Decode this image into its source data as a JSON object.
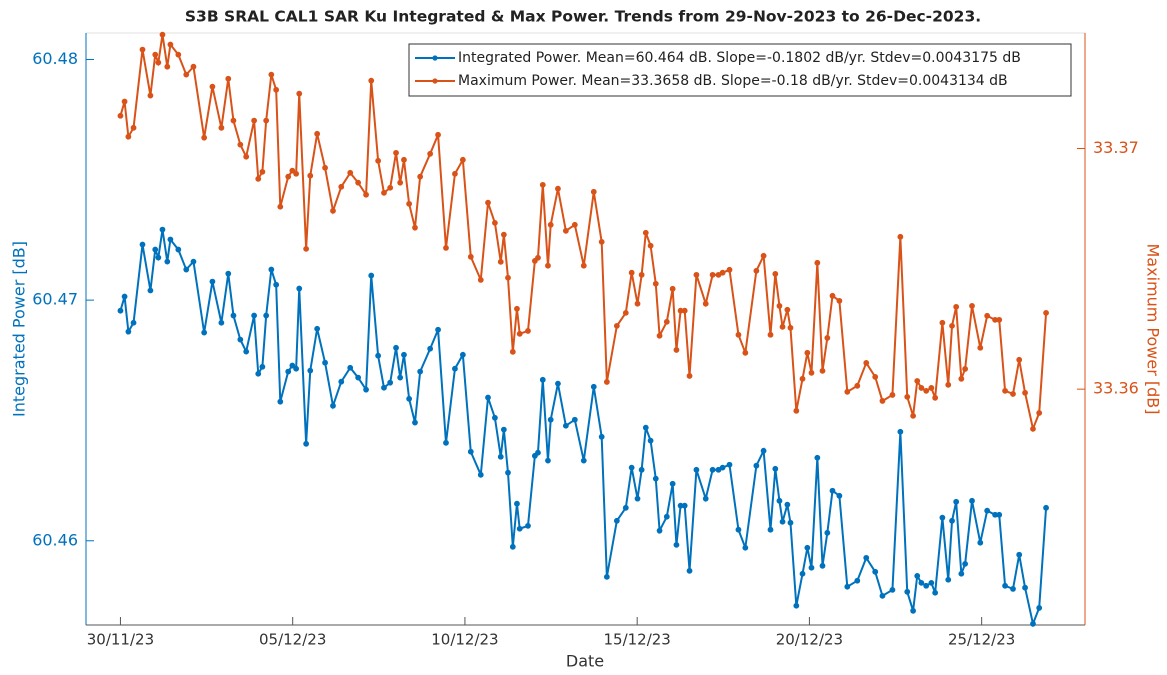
{
  "chart_data": {
    "type": "line",
    "title": "S3B SRAL CAL1 SAR Ku Integrated & Max Power. Trends from 29-Nov-2023 to 26-Dec-2023.",
    "x_label": "Date",
    "y_label": "Integrated Power [dB]",
    "y2_label": "Maximum Power [dB]",
    "xlim": [
      -1,
      28
    ],
    "xticks": [
      {
        "value": 0,
        "label": "30/11/23"
      },
      {
        "value": 5,
        "label": "05/12/23"
      },
      {
        "value": 10,
        "label": "10/12/23"
      },
      {
        "value": 15,
        "label": "15/12/23"
      },
      {
        "value": 20,
        "label": "20/12/23"
      },
      {
        "value": 25,
        "label": "25/12/23"
      }
    ],
    "ylim": [
      60.4565,
      60.4811
    ],
    "yticks": [
      60.46,
      60.47,
      60.48
    ],
    "y2lim": [
      33.3502,
      33.3748
    ],
    "y2ticks": [
      33.36,
      33.37
    ],
    "grid": false,
    "legend": "upper right",
    "x": [
      0,
      0.12,
      0.23,
      0.38,
      0.64,
      0.87,
      1.01,
      1.1,
      1.22,
      1.36,
      1.45,
      1.68,
      1.91,
      2.12,
      2.43,
      2.67,
      2.93,
      3.13,
      3.28,
      3.48,
      3.65,
      3.88,
      4.0,
      4.12,
      4.23,
      4.38,
      4.52,
      4.64,
      4.87,
      4.99,
      5.1,
      5.19,
      5.39,
      5.51,
      5.71,
      5.94,
      6.17,
      6.41,
      6.67,
      6.9,
      7.13,
      7.28,
      7.48,
      7.65,
      7.83,
      8.0,
      8.12,
      8.23,
      8.38,
      8.55,
      8.7,
      8.99,
      9.22,
      9.45,
      9.71,
      9.94,
      10.17,
      10.46,
      10.67,
      10.87,
      11.04,
      11.13,
      11.25,
      11.39,
      11.51,
      11.59,
      11.83,
      12.03,
      12.12,
      12.26,
      12.41,
      12.49,
      12.7,
      12.93,
      13.19,
      13.45,
      13.74,
      13.97,
      14.12,
      14.41,
      14.67,
      14.84,
      15.01,
      15.13,
      15.25,
      15.39,
      15.54,
      15.65,
      15.86,
      16.03,
      16.14,
      16.26,
      16.38,
      16.52,
      16.72,
      16.99,
      17.19,
      17.36,
      17.48,
      17.68,
      17.94,
      18.14,
      18.46,
      18.67,
      18.87,
      19.01,
      19.13,
      19.22,
      19.36,
      19.45,
      19.62,
      19.8,
      19.94,
      20.06,
      20.23,
      20.38,
      20.52,
      20.67,
      20.87,
      21.1,
      21.39,
      21.65,
      21.91,
      22.12,
      22.41,
      22.64,
      22.84,
      23.01,
      23.13,
      23.25,
      23.39,
      23.54,
      23.65,
      23.86,
      24.03,
      24.14,
      24.26,
      24.41,
      24.52,
      24.72,
      24.96,
      25.16,
      25.39,
      25.51,
      25.68,
      25.91,
      26.09,
      26.26,
      26.49,
      26.67,
      26.87
    ],
    "series": [
      {
        "name": "Integrated Power. Mean=60.464 dB. Slope=-0.1802 dB/yr. Stdev=0.0043175 dB",
        "color": "#0072bd",
        "axis": "y",
        "values": [
          60.46956,
          60.47015,
          60.46869,
          60.46906,
          60.47231,
          60.4704,
          60.4721,
          60.47177,
          60.47293,
          60.4716,
          60.47252,
          60.4721,
          60.47127,
          60.4716,
          60.46865,
          60.47077,
          60.46906,
          60.4711,
          60.46936,
          60.46836,
          60.46786,
          60.46936,
          60.46694,
          60.46723,
          60.46936,
          60.47127,
          60.47064,
          60.46578,
          60.46703,
          60.46728,
          60.46715,
          60.47048,
          60.46403,
          60.46707,
          60.46881,
          60.4674,
          60.46561,
          60.46661,
          60.46719,
          60.46678,
          60.46628,
          60.47102,
          60.46769,
          60.46636,
          60.46657,
          60.46802,
          60.46678,
          60.46773,
          60.4659,
          60.46491,
          60.46703,
          60.46798,
          60.46877,
          60.46407,
          60.46715,
          60.46773,
          60.4637,
          60.46274,
          60.46595,
          60.46511,
          60.46349,
          60.46462,
          60.46283,
          60.45975,
          60.46154,
          60.4605,
          60.46062,
          60.46353,
          60.46366,
          60.46669,
          60.46333,
          60.46503,
          60.46653,
          60.46478,
          60.46503,
          60.46333,
          60.4664,
          60.46432,
          60.4585,
          60.46083,
          60.46137,
          60.46304,
          60.46175,
          60.46295,
          60.4647,
          60.46416,
          60.46258,
          60.46042,
          60.461,
          60.46237,
          60.45983,
          60.46146,
          60.46146,
          60.45875,
          60.46295,
          60.46175,
          60.46295,
          60.46295,
          60.46304,
          60.46316,
          60.46046,
          60.45971,
          60.46312,
          60.46374,
          60.46046,
          60.46299,
          60.46166,
          60.46079,
          60.4615,
          60.46075,
          60.4573,
          60.45863,
          60.45971,
          60.45888,
          60.46345,
          60.45896,
          60.46033,
          60.46208,
          60.46187,
          60.45809,
          60.45834,
          60.45929,
          60.45871,
          60.45771,
          60.45796,
          60.46453,
          60.45788,
          60.45709,
          60.45854,
          60.45825,
          60.45813,
          60.45825,
          60.45784,
          60.46096,
          60.45838,
          60.46083,
          60.46162,
          60.45863,
          60.45904,
          60.46166,
          60.45992,
          60.46125,
          60.46108,
          60.46108,
          60.45813,
          60.458,
          60.45942,
          60.45805,
          60.45655,
          60.45721,
          60.46137
        ]
      },
      {
        "name": "Maximum Power. Mean=33.3658 dB. Slope=-0.18 dB/yr. Stdev=0.0043134 dB",
        "color": "#d95319",
        "axis": "y2",
        "values": [
          33.37136,
          33.37195,
          33.37049,
          33.37086,
          33.37411,
          33.3722,
          33.3739,
          33.37357,
          33.37473,
          33.3734,
          33.37432,
          33.3739,
          33.37307,
          33.3734,
          33.37045,
          33.37257,
          33.37086,
          33.3729,
          33.37116,
          33.37016,
          33.36966,
          33.37116,
          33.36874,
          33.36903,
          33.37116,
          33.37307,
          33.37244,
          33.36758,
          33.36883,
          33.36908,
          33.36895,
          33.37228,
          33.36583,
          33.36887,
          33.37061,
          33.3692,
          33.36741,
          33.36841,
          33.36899,
          33.36858,
          33.36808,
          33.37282,
          33.36949,
          33.36816,
          33.36837,
          33.36982,
          33.36858,
          33.36953,
          33.3677,
          33.36671,
          33.36883,
          33.36978,
          33.37057,
          33.36587,
          33.36895,
          33.36953,
          33.3655,
          33.36454,
          33.36775,
          33.36691,
          33.36529,
          33.36642,
          33.36463,
          33.36155,
          33.36334,
          33.3623,
          33.36242,
          33.36533,
          33.36546,
          33.36849,
          33.36513,
          33.36683,
          33.36833,
          33.36658,
          33.36683,
          33.36513,
          33.3682,
          33.36612,
          33.3603,
          33.36263,
          33.36317,
          33.36484,
          33.36355,
          33.36475,
          33.3665,
          33.36596,
          33.36438,
          33.36222,
          33.3628,
          33.36417,
          33.36163,
          33.36326,
          33.36326,
          33.36055,
          33.36475,
          33.36355,
          33.36475,
          33.36475,
          33.36484,
          33.36496,
          33.36226,
          33.36151,
          33.36492,
          33.36554,
          33.36226,
          33.36479,
          33.36346,
          33.36259,
          33.3633,
          33.36255,
          33.3591,
          33.36043,
          33.36151,
          33.36068,
          33.36525,
          33.36076,
          33.36213,
          33.36388,
          33.36367,
          33.35989,
          33.36014,
          33.36109,
          33.36051,
          33.35951,
          33.35976,
          33.36633,
          33.35968,
          33.35889,
          33.36034,
          33.36005,
          33.35993,
          33.36005,
          33.35964,
          33.36276,
          33.36018,
          33.36263,
          33.36342,
          33.36043,
          33.36084,
          33.36346,
          33.36172,
          33.36305,
          33.36288,
          33.36288,
          33.35993,
          33.3598,
          33.36122,
          33.35985,
          33.35835,
          33.35901,
          33.36317
        ]
      }
    ]
  }
}
